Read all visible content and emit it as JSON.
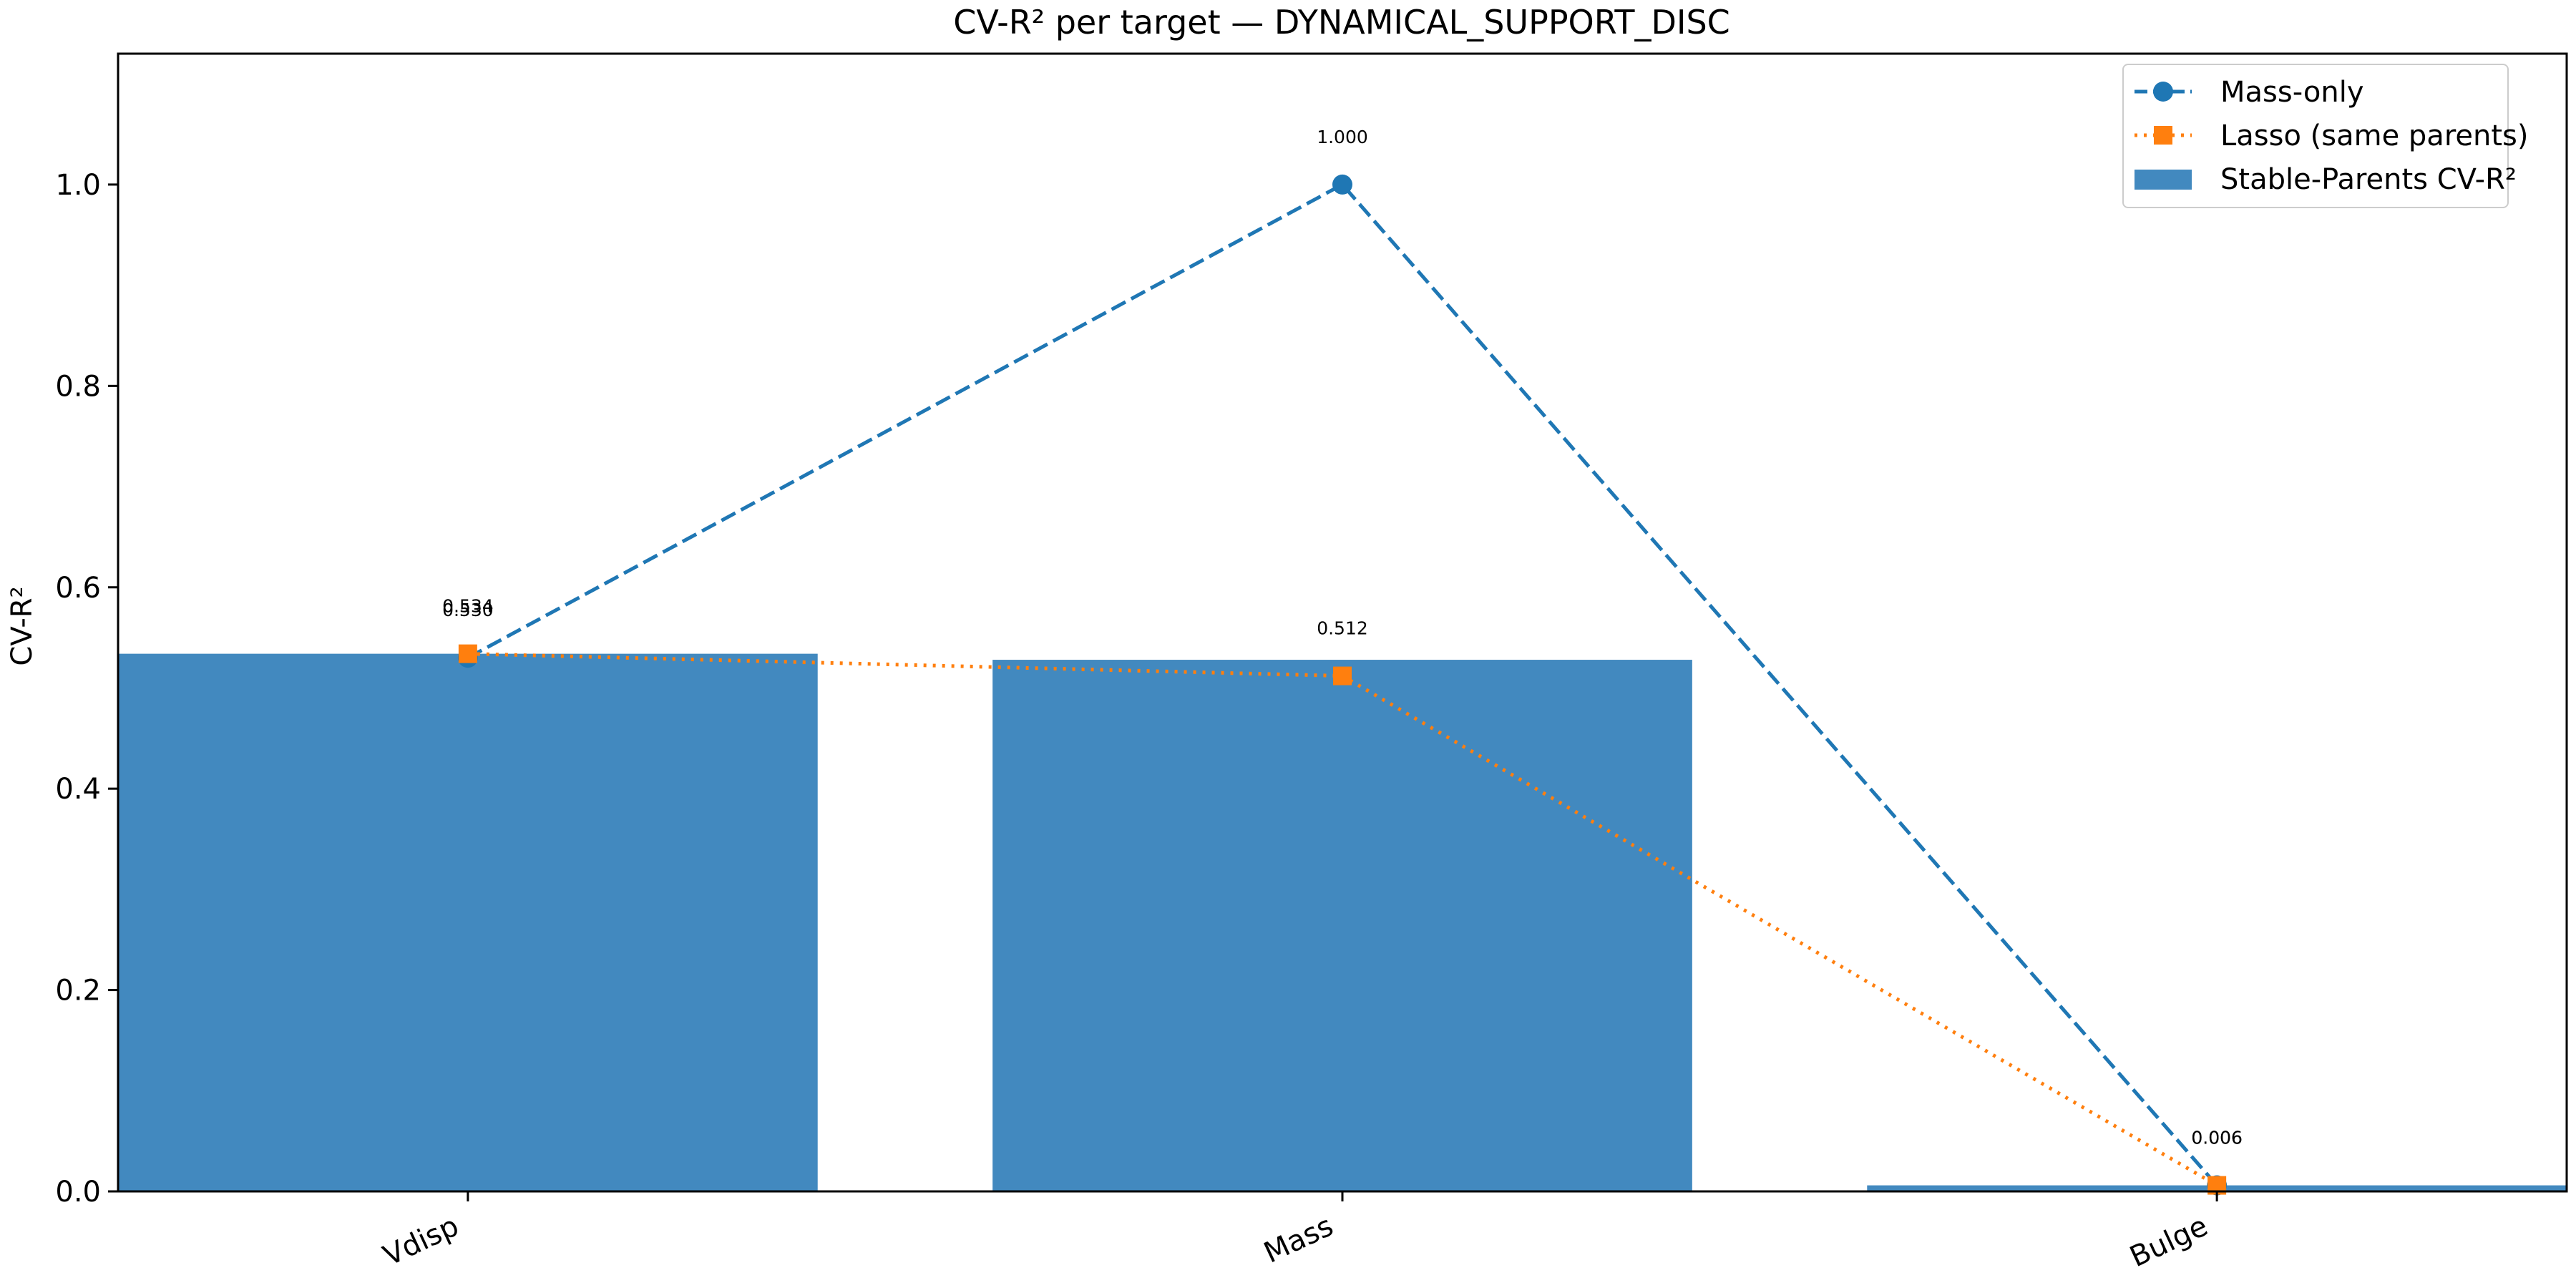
{
  "chart_data": {
    "type": "bar",
    "title": "CV-R² per target — DYNAMICAL_SUPPORT_DISC",
    "xlabel": "",
    "ylabel": "CV-R²",
    "categories": [
      "Vdisp",
      "Mass",
      "Bulge"
    ],
    "ylim": [
      0,
      1.13
    ],
    "yticks": [
      0.0,
      0.2,
      0.4,
      0.6,
      0.8,
      1.0
    ],
    "ytick_labels": [
      "0.0",
      "0.2",
      "0.4",
      "0.6",
      "0.8",
      "1.0"
    ],
    "grid": false,
    "legend_position": "top-right",
    "series": [
      {
        "name": "Stable-Parents CV-R²",
        "kind": "bar",
        "color": "#4289bf",
        "values": [
          0.534,
          0.528,
          0.006
        ]
      },
      {
        "name": "Mass-only",
        "kind": "line",
        "style": "dashed",
        "marker": "circle",
        "color": "#1f77b4",
        "values": [
          0.53,
          1.0,
          0.006
        ]
      },
      {
        "name": "Lasso (same parents)",
        "kind": "line",
        "style": "dotted",
        "marker": "square",
        "color": "#ff7f0e",
        "values": [
          0.534,
          0.512,
          0.006
        ]
      }
    ],
    "annotations": [
      {
        "category": "Vdisp",
        "labels": [
          "0.534",
          "0.530"
        ]
      },
      {
        "category": "Mass",
        "labels": [
          "1.000",
          "0.512"
        ]
      },
      {
        "category": "Bulge",
        "labels": [
          "0.006",
          "0.006"
        ]
      }
    ]
  }
}
